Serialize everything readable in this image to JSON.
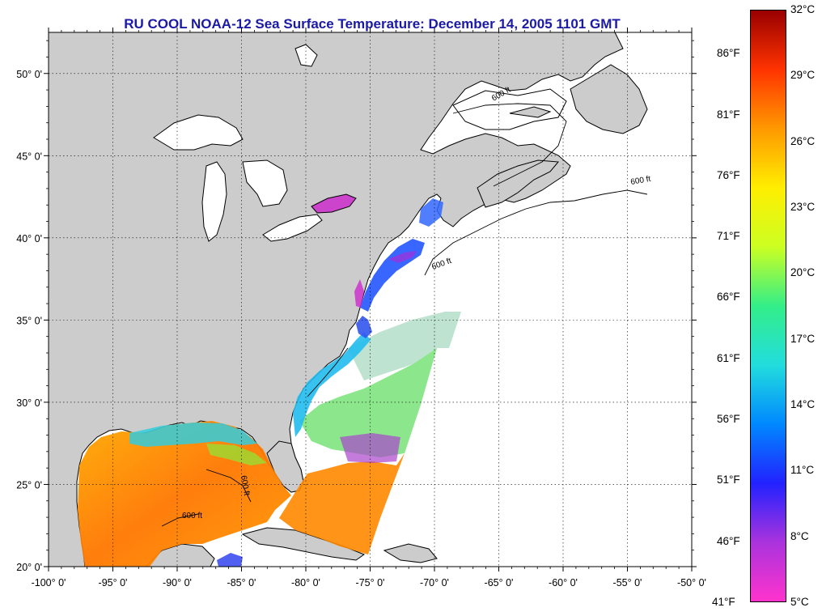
{
  "title": "RU COOL  NOAA-12  Sea Surface Temperature:  December 14, 2005 1101 GMT",
  "map": {
    "lon_range": [
      -100,
      -50
    ],
    "lat_range": [
      20,
      52.5
    ],
    "lon_ticks": [
      "-100° 0'",
      "-95° 0'",
      "-90° 0'",
      "-85° 0'",
      "-80° 0'",
      "-75° 0'",
      "-70° 0'",
      "-65° 0'",
      "-60° 0'",
      "-55° 0'",
      "-50° 0'"
    ],
    "lat_ticks": [
      "20° 0'",
      "25° 0'",
      "30° 0'",
      "35° 0'",
      "40° 0'",
      "45° 0'",
      "50° 0'"
    ],
    "lat_values": [
      20,
      25,
      30,
      35,
      40,
      45,
      50
    ],
    "lon_values": [
      -100,
      -95,
      -90,
      -85,
      -80,
      -75,
      -70,
      -65,
      -60,
      -55,
      -50
    ],
    "contour_label": "600 ft",
    "land_color": "#cccccc",
    "ocean_color": "#ffffff"
  },
  "colorbar": {
    "celsius_labels": [
      "32°C",
      "29°C",
      "26°C",
      "23°C",
      "20°C",
      "17°C",
      "14°C",
      "11°C",
      "8°C",
      "5°C"
    ],
    "fahrenheit_labels": [
      "86°F",
      "81°F",
      "76°F",
      "71°F",
      "66°F",
      "61°F",
      "56°F",
      "51°F",
      "46°F",
      "41°F"
    ],
    "celsius_values": [
      32,
      29,
      26,
      23,
      20,
      17,
      14,
      11,
      8,
      5
    ],
    "fahrenheit_values": [
      86,
      81,
      76,
      71,
      66,
      61,
      56,
      51,
      46,
      41
    ],
    "range_c": [
      5,
      32
    ],
    "stops": [
      "#ff33cc",
      "#aa33dd",
      "#2222ff",
      "#0088ff",
      "#22dddd",
      "#33ee88",
      "#ccff22",
      "#ffee00",
      "#ff9900",
      "#ff3300",
      "#990000"
    ]
  }
}
